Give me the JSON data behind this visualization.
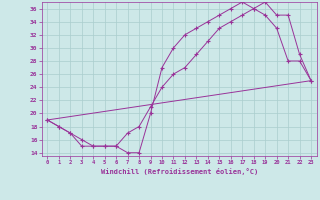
{
  "xlabel": "Windchill (Refroidissement éolien,°C)",
  "bg_color": "#cde8e8",
  "line_color": "#993399",
  "grid_color": "#aacece",
  "xlim": [
    -0.5,
    23.5
  ],
  "ylim": [
    13.5,
    37.0
  ],
  "xticks": [
    0,
    1,
    2,
    3,
    4,
    5,
    6,
    7,
    8,
    9,
    10,
    11,
    12,
    13,
    14,
    15,
    16,
    17,
    18,
    19,
    20,
    21,
    22,
    23
  ],
  "yticks": [
    14,
    16,
    18,
    20,
    22,
    24,
    26,
    28,
    30,
    32,
    34,
    36
  ],
  "series1_x": [
    0,
    1,
    2,
    3,
    4,
    5,
    6,
    7,
    8,
    9,
    10,
    11,
    12,
    13,
    14,
    15,
    16,
    17,
    18,
    19,
    20,
    21,
    22,
    23
  ],
  "series1_y": [
    19,
    18,
    17,
    15,
    15,
    15,
    15,
    14,
    14,
    20,
    27,
    30,
    32,
    33,
    34,
    35,
    36,
    37,
    36,
    35,
    33,
    28,
    28,
    25
  ],
  "series2_x": [
    0,
    1,
    2,
    3,
    4,
    5,
    6,
    7,
    8,
    9,
    10,
    11,
    12,
    13,
    14,
    15,
    16,
    17,
    18,
    19,
    20,
    21,
    22,
    23
  ],
  "series2_y": [
    19,
    18,
    17,
    16,
    15,
    15,
    15,
    17,
    18,
    21,
    24,
    26,
    27,
    29,
    31,
    33,
    34,
    35,
    36,
    37,
    35,
    35,
    29,
    25
  ],
  "series3_x": [
    0,
    23
  ],
  "series3_y": [
    19,
    25
  ]
}
